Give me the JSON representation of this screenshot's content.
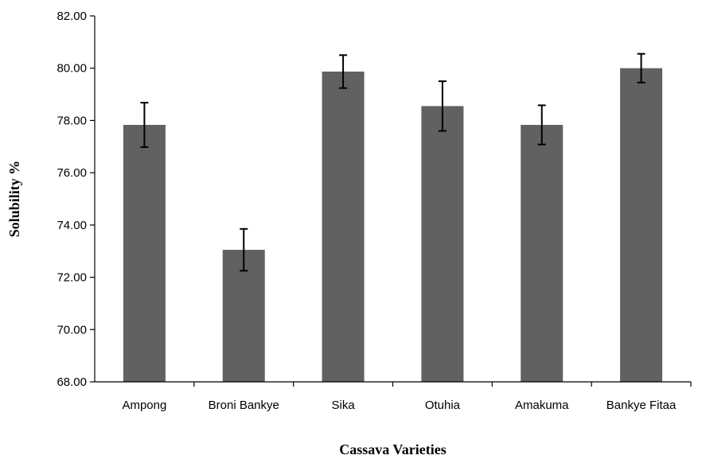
{
  "chart_data": {
    "type": "bar",
    "title": "",
    "xlabel": "Cassava Varieties",
    "ylabel": "Solubility %",
    "ylim": [
      68,
      82
    ],
    "yticks": [
      "68.00",
      "70.00",
      "72.00",
      "74.00",
      "76.00",
      "78.00",
      "80.00",
      "82.00"
    ],
    "categories": [
      "Ampong",
      "Broni Bankye",
      "Sika",
      "Otuhia",
      "Amakuma",
      "Bankye Fitaa"
    ],
    "values": [
      77.83,
      73.05,
      79.87,
      78.55,
      77.83,
      80.0
    ],
    "error_low": [
      76.98,
      72.25,
      79.24,
      77.6,
      77.08,
      79.45
    ],
    "error_high": [
      78.68,
      73.85,
      80.5,
      79.5,
      78.58,
      80.55
    ],
    "bar_color": "#616161",
    "grid": false,
    "legend": "none"
  }
}
